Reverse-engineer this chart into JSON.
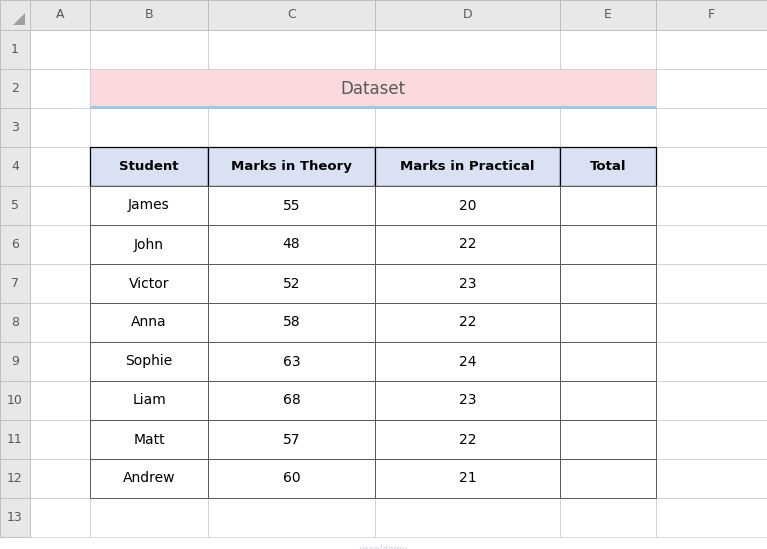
{
  "title": "Dataset",
  "title_bg": "#FADADD",
  "title_color": "#595959",
  "headers": [
    "Student",
    "Marks in Theory",
    "Marks in Practical",
    "Total"
  ],
  "rows": [
    [
      "James",
      "55",
      "20",
      ""
    ],
    [
      "John",
      "48",
      "22",
      ""
    ],
    [
      "Victor",
      "52",
      "23",
      ""
    ],
    [
      "Anna",
      "58",
      "22",
      ""
    ],
    [
      "Sophie",
      "63",
      "24",
      ""
    ],
    [
      "Liam",
      "68",
      "23",
      ""
    ],
    [
      "Matt",
      "57",
      "22",
      ""
    ],
    [
      "Andrew",
      "60",
      "21",
      ""
    ]
  ],
  "col_labels": [
    "A",
    "B",
    "C",
    "D",
    "E",
    "F"
  ],
  "row_labels": [
    "1",
    "2",
    "3",
    "4",
    "5",
    "6",
    "7",
    "8",
    "9",
    "10",
    "11",
    "12",
    "13"
  ],
  "header_bg": "#D9E1F2",
  "cell_bg": "#FFFFFF",
  "excel_header_bg": "#E8E8E8",
  "excel_border_color": "#BFBFBF",
  "fig_bg": "#FFFFFF",
  "title_line_color": "#9DC3E6",
  "table_border_color": "#4472C4",
  "data_border_color": "#595959"
}
